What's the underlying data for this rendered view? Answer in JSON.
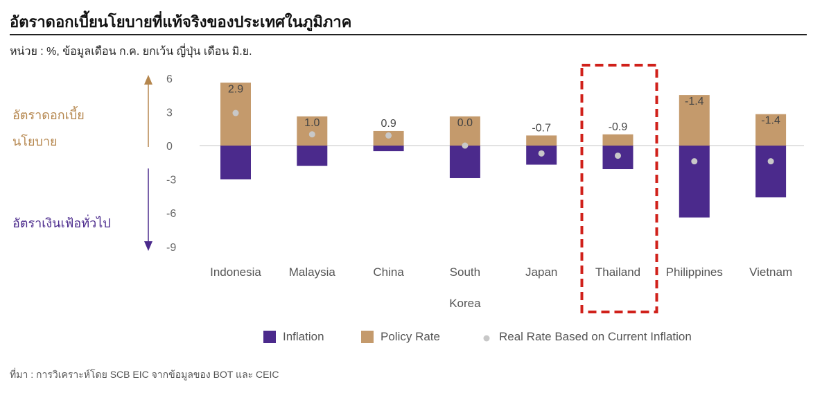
{
  "title": "อัตราดอกเบี้ยนโยบายที่แท้จริงของประเทศในภูมิภาค",
  "subtitle": "หน่วย : %, ข้อมูลเดือน ก.ค. ยกเว้น ญี่ปุ่น เดือน มิ.ย.",
  "source": "ที่มา : การวิเคราะห์โดย SCB EIC จากข้อมูลของ BOT และ CEIC",
  "annotations": {
    "up_label_line1": "อัตราดอกเบี้ย",
    "up_label_line2": "นโยบาย",
    "down_label": "อัตราเงินเฟ้อทั่วไป"
  },
  "colors": {
    "inflation": "#4B2A8C",
    "policy": "#C49A6C",
    "real": "#C8C8C8",
    "highlight": "#D0201A",
    "up_arrow": "#B5864D",
    "down_arrow": "#4B2A8C"
  },
  "chart_data": {
    "type": "bar",
    "categories": [
      "Indonesia",
      "Malaysia",
      "China",
      "South Korea",
      "Japan",
      "Thailand",
      "Philippines",
      "Vietnam"
    ],
    "category_lines": [
      [
        "Indonesia"
      ],
      [
        "Malaysia"
      ],
      [
        "China"
      ],
      [
        "South",
        "Korea"
      ],
      [
        "Japan"
      ],
      [
        "Thailand"
      ],
      [
        "Philippines"
      ],
      [
        "Vietnam"
      ]
    ],
    "series": [
      {
        "name": "Inflation",
        "values": [
          -3.0,
          -1.8,
          -0.5,
          -2.9,
          -1.7,
          -2.1,
          -6.4,
          -4.6
        ]
      },
      {
        "name": "Policy Rate",
        "values": [
          5.6,
          2.6,
          1.3,
          2.6,
          0.9,
          1.0,
          4.5,
          2.8
        ]
      },
      {
        "name": "Real Rate Based on Current Inflation",
        "values": [
          2.9,
          1.0,
          0.9,
          0.0,
          -0.7,
          -0.9,
          -1.4,
          -1.4
        ]
      }
    ],
    "data_labels": [
      "2.9",
      "1.0",
      "0.9",
      "0.0",
      "-0.7",
      "-0.9",
      "-1.4",
      "-1.4"
    ],
    "y_ticks": [
      6,
      3,
      0,
      -3,
      -6,
      -9
    ],
    "y_tick_labels": [
      "6",
      "3",
      "0",
      "-3",
      "-6",
      "-9"
    ],
    "ylim": [
      -9,
      6
    ],
    "highlight_category": "Thailand",
    "legend": [
      "Inflation",
      "Policy Rate",
      "Real Rate Based on Current Inflation"
    ],
    "legend_position": "bottom"
  }
}
